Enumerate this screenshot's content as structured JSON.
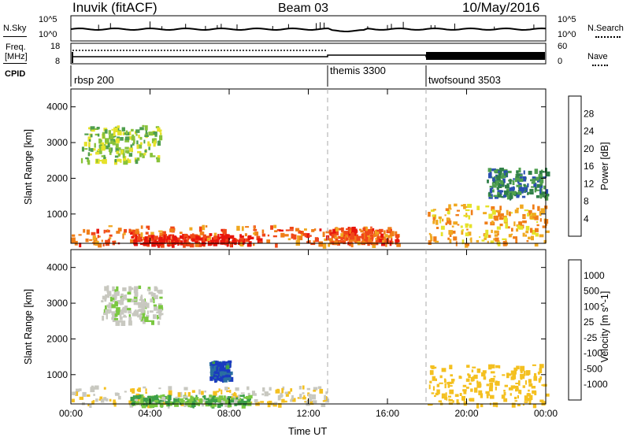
{
  "header": {
    "station": "Inuvik (fitACF)",
    "beam": "Beam 03",
    "date": "10/May/2016"
  },
  "top_panels": {
    "nsky_label": "N.Sky",
    "nsky_ticks": [
      "10^5",
      "10^0"
    ],
    "nsearch_label": "N.Search",
    "nsearch_ticks": [
      "10^5",
      "10^0"
    ],
    "freq_label_1": "Freq.",
    "freq_label_2": "[MHz]",
    "freq_ticks": [
      "18",
      "8"
    ],
    "nave_label": "Nave",
    "nave_ticks": [
      "60",
      "0"
    ],
    "cpid_label": "CPID",
    "cpid_segments": [
      {
        "name": "rbsp 200",
        "start_hour": 0
      },
      {
        "name": "themis 3300",
        "start_hour": 13
      },
      {
        "name": "twofsound 3503",
        "start_hour": 18
      }
    ]
  },
  "colors": {
    "power_scale": [
      "#0a1aff",
      "#2a4fb0",
      "#2f7f48",
      "#4f9f4e",
      "#88c23a",
      "#e6e22a",
      "#f0a820",
      "#f07e18",
      "#f04818",
      "#e8140c"
    ],
    "velocity_scale": [
      "#e8140c",
      "#f05a18",
      "#f08a1e",
      "#f4c020",
      "#c8c8c0",
      "#c8c8c0",
      "#7ac840",
      "#3c9f48",
      "#2a6fa0",
      "#1a3ac0"
    ]
  },
  "chart_data": [
    {
      "type": "heatmap",
      "title": "Power",
      "xlabel": "",
      "ylabel": "Slant Range [km]",
      "xlim": [
        0,
        24
      ],
      "ylim": [
        180,
        4500
      ],
      "x_ticks": [
        "00:00",
        "04:00",
        "08:00",
        "12:00",
        "16:00",
        "20:00",
        "00:00"
      ],
      "y_ticks": [
        "1000",
        "2000",
        "3000",
        "4000"
      ],
      "colorbar_label": "Power [dB]",
      "colorbar_ticks": [
        "4",
        "8",
        "12",
        "16",
        "20",
        "24",
        "28"
      ],
      "colorbar_range": [
        0,
        30
      ],
      "regions": [
        {
          "x": [
            0,
            13
          ],
          "y": [
            180,
            700
          ],
          "value": 24
        },
        {
          "x": [
            3,
            9
          ],
          "y": [
            180,
            450
          ],
          "value": 29
        },
        {
          "x": [
            13,
            16.5
          ],
          "y": [
            180,
            650
          ],
          "value": 24
        },
        {
          "x": [
            18,
            24
          ],
          "y": [
            180,
            1300
          ],
          "value": 20
        },
        {
          "x": [
            0.5,
            4.5
          ],
          "y": [
            2500,
            3500
          ],
          "value": 14
        },
        {
          "x": [
            21,
            24
          ],
          "y": [
            1500,
            2300
          ],
          "value": 8
        }
      ]
    },
    {
      "type": "heatmap",
      "title": "Velocity",
      "xlabel": "Time UT",
      "ylabel": "Slant Range [km]",
      "xlim": [
        0,
        24
      ],
      "ylim": [
        180,
        4500
      ],
      "x_ticks": [
        "00:00",
        "04:00",
        "08:00",
        "12:00",
        "16:00",
        "20:00",
        "00:00"
      ],
      "y_ticks": [
        "1000",
        "2000",
        "3000",
        "4000"
      ],
      "colorbar_label": "Velocity [m s^-1]",
      "colorbar_ticks": [
        "1000",
        "500",
        "100",
        "25",
        "-25",
        "-100",
        "-500",
        "-1000"
      ],
      "regions": [
        {
          "x": [
            0,
            13
          ],
          "y": [
            180,
            700
          ],
          "value": -100
        },
        {
          "x": [
            3,
            9
          ],
          "y": [
            180,
            450
          ],
          "value": 100
        },
        {
          "x": [
            1.5,
            4.5
          ],
          "y": [
            2500,
            3500
          ],
          "value": 0
        },
        {
          "x": [
            7,
            8
          ],
          "y": [
            900,
            1400
          ],
          "value": 1000
        },
        {
          "x": [
            18,
            24
          ],
          "y": [
            180,
            1300
          ],
          "value": -300
        }
      ]
    }
  ],
  "axes": {
    "xlabel_bottom": "Time UT"
  }
}
